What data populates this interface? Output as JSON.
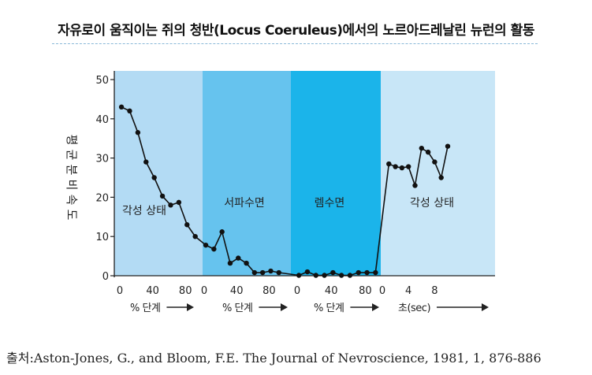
{
  "header": {
    "title": "자유로이 움직이는 쥐의 청반(Locus Coeruleus)에서의 노르아드레날린 뉴런의 활동"
  },
  "footer": {
    "source": "출처:Aston-Jones, G., and Bloom, F.E. The Journal of Nevroscience, 1981, 1, 876-886"
  },
  "chart_data": {
    "type": "line",
    "title": "자유로이 움직이는 쥐의 청반(Locus Coeruleus)에서의 노르아드레날린 뉴런의 활동",
    "ylabel": "평균분비속도",
    "ylim": [
      0,
      50
    ],
    "y_ticks": [
      0,
      10,
      20,
      30,
      40,
      50
    ],
    "grid": false,
    "colors": {
      "band_awake": "#b3dbf4",
      "band_slow_sleep": "#66c3ee",
      "band_rem": "#1bb4ea",
      "band_awake2": "#c8e6f7",
      "line": "#111111"
    },
    "panels": [
      {
        "state": "각성 상태",
        "color": "band_awake",
        "x_ticks": [
          "0",
          "40",
          "80"
        ],
        "x_unit": "% 단계",
        "points": [
          [
            2,
            43
          ],
          [
            12,
            42
          ],
          [
            22,
            36.5
          ],
          [
            32,
            29
          ],
          [
            42,
            25
          ],
          [
            52,
            20.3
          ],
          [
            62,
            18
          ],
          [
            72,
            18.7
          ],
          [
            82,
            13
          ],
          [
            92,
            10
          ]
        ]
      },
      {
        "state": "서파수면",
        "color": "band_slow_sleep",
        "x_ticks": [
          "0",
          "40",
          "80"
        ],
        "x_unit": "% 단계",
        "points": [
          [
            2,
            7.8
          ],
          [
            12,
            6.8
          ],
          [
            22,
            11.2
          ],
          [
            32,
            3.2
          ],
          [
            42,
            4.5
          ],
          [
            52,
            3.2
          ],
          [
            62,
            0.8
          ],
          [
            72,
            0.8
          ],
          [
            82,
            1.2
          ],
          [
            92,
            0.8
          ]
        ]
      },
      {
        "state": "렘수면",
        "color": "band_rem",
        "x_ticks": [
          "0",
          "40",
          "80"
        ],
        "x_unit": "% 단계",
        "points": [
          [
            2,
            0.1
          ],
          [
            12,
            1
          ],
          [
            22,
            0.1
          ],
          [
            32,
            0.1
          ],
          [
            42,
            0.8
          ],
          [
            52,
            0.1
          ],
          [
            62,
            0.1
          ],
          [
            72,
            0.8
          ],
          [
            82,
            0.8
          ],
          [
            92,
            0.8
          ]
        ]
      },
      {
        "state": "각성 상태",
        "color": "band_awake2",
        "x_ticks": [
          "0",
          "4",
          "8"
        ],
        "x_unit": "초(sec)",
        "points": [
          [
            1,
            28.5
          ],
          [
            2,
            27.8
          ],
          [
            3,
            27.5
          ],
          [
            4,
            27.8
          ],
          [
            5,
            23
          ],
          [
            6,
            32.5
          ],
          [
            7,
            31.5
          ],
          [
            8,
            29
          ],
          [
            9,
            25
          ],
          [
            10,
            33
          ]
        ]
      }
    ]
  }
}
